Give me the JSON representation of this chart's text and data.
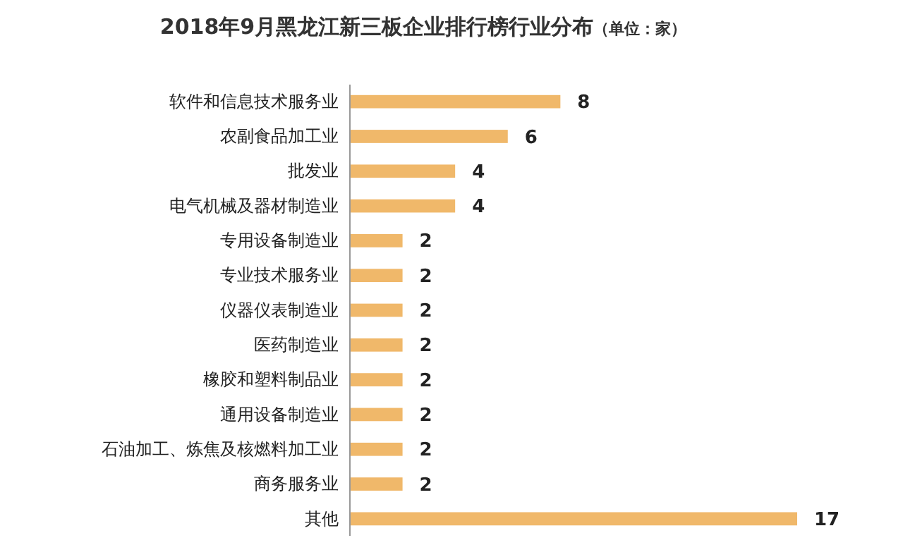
{
  "chart_data": {
    "type": "bar",
    "orientation": "horizontal",
    "title": "2018年9月黑龙江新三板企业排行榜行业分布",
    "subtitle": "（单位：家）",
    "categories": [
      "软件和信息技术服务业",
      "农副食品加工业",
      "批发业",
      "电气机械及器材制造业",
      "专用设备制造业",
      "专业技术服务业",
      "仪器仪表制造业",
      "医药制造业",
      "橡胶和塑料制品业",
      "通用设备制造业",
      "石油加工、炼焦及核燃料加工业",
      "商务服务业",
      "其他"
    ],
    "values": [
      8,
      6,
      4,
      4,
      2,
      2,
      2,
      2,
      2,
      2,
      2,
      2,
      17
    ],
    "color": "#f0b86a",
    "data_labels": true
  }
}
